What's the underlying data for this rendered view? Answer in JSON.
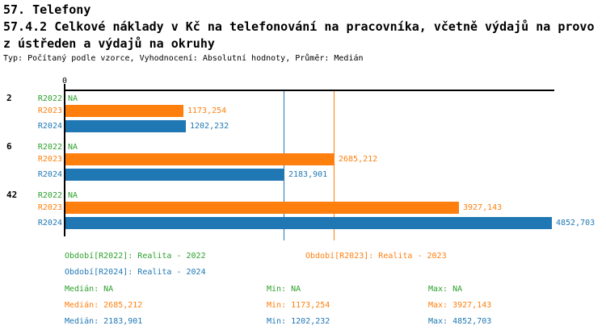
{
  "header": {
    "title1": "57. Telefony",
    "title2": "57.4.2 Celkové náklady v Kč na telefonování na pracovníka, včetně výdajů na provo",
    "title3": "z ústředen a výdajů na okruhy",
    "meta": "Typ: Počítaný podle vzorce, Vyhodnocení: Absolutní hodnoty, Průměr: Medián"
  },
  "colors": {
    "r2022": "#2CA02C",
    "r2023": "#FF7F0E",
    "r2024": "#1F77B4",
    "axis": "#000000"
  },
  "chart_data": {
    "type": "bar",
    "orientation": "horizontal",
    "title": "57.4.2 Celkové náklady v Kč na telefonování na pracovníka, včetně výdajů na provoz ústředen a výdajů na okruhy",
    "origin_tick_label": "0",
    "na_label": "NA",
    "categories": [
      "2",
      "6",
      "42"
    ],
    "series": [
      {
        "name": "R2022",
        "color_key": "r2022",
        "values": [
          null,
          null,
          null
        ],
        "display": [
          "NA",
          "NA",
          "NA"
        ]
      },
      {
        "name": "R2023",
        "color_key": "r2023",
        "values": [
          1173.254,
          2685.212,
          3927.143
        ],
        "display": [
          "1173,254",
          "2685,212",
          "3927,143"
        ]
      },
      {
        "name": "R2024",
        "color_key": "r2024",
        "values": [
          1202.232,
          2183.901,
          4852.703
        ],
        "display": [
          "1202,232",
          "2183,901",
          "4852,703"
        ]
      }
    ],
    "median_lines": [
      {
        "series": "R2023",
        "value": 2685.212
      },
      {
        "series": "R2024",
        "value": 2183.901
      }
    ],
    "xlim": [
      0,
      4880
    ],
    "grid": false,
    "legend_position": "bottom"
  },
  "legend": [
    {
      "label": "Období[R2022]: Realita - 2022",
      "color_key": "r2022"
    },
    {
      "label": "Období[R2023]: Realita - 2023",
      "color_key": "r2023"
    },
    {
      "label": "Období[R2024]: Realita - 2024",
      "color_key": "r2024"
    }
  ],
  "stats": [
    {
      "color_key": "r2022",
      "median": "Medián: NA",
      "min": "Min: NA",
      "max": "Max: NA"
    },
    {
      "color_key": "r2023",
      "median": "Medián: 2685,212",
      "min": "Min: 1173,254",
      "max": "Max: 3927,143"
    },
    {
      "color_key": "r2024",
      "median": "Medián: 2183,901",
      "min": "Min: 1202,232",
      "max": "Max: 4852,703"
    }
  ]
}
